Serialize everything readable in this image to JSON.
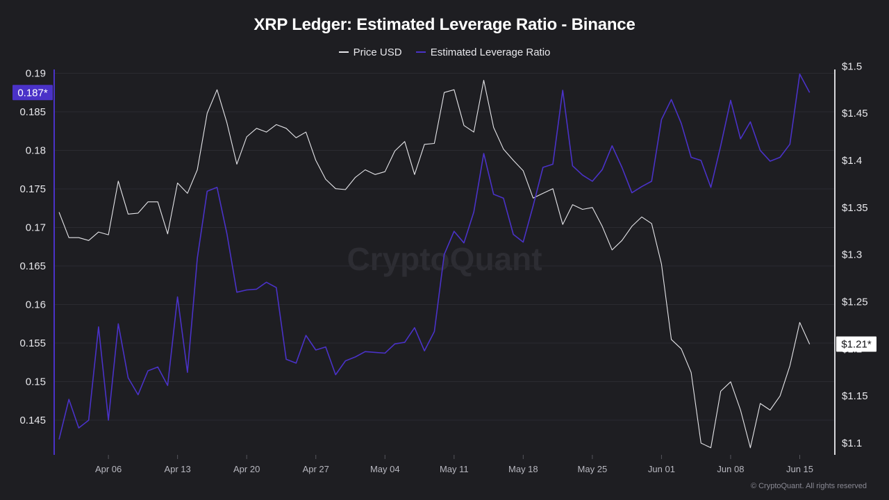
{
  "title": "XRP Ledger: Estimated Leverage Ratio - Binance",
  "watermark": "CryptoQuant",
  "footer": "© CryptoQuant. All rights reserved",
  "legend": [
    {
      "name": "Price USD",
      "color": "#e6e6ea"
    },
    {
      "name": "Estimated Leverage Ratio",
      "color": "#4a32c8"
    }
  ],
  "chart_data": {
    "type": "line",
    "x_start": "Apr 01",
    "x_step_days": 1,
    "x_ticks": [
      "Apr 06",
      "Apr 13",
      "Apr 20",
      "Apr 27",
      "May 04",
      "May 11",
      "May 18",
      "May 25",
      "Jun 01",
      "Jun 08",
      "Jun 15"
    ],
    "grid": true,
    "legend_position": "top-center",
    "axes": {
      "left": {
        "series": "Estimated Leverage Ratio",
        "range": [
          0.1405,
          0.1905
        ],
        "ticks": [
          "0.19",
          "0.185",
          "0.18",
          "0.175",
          "0.17",
          "0.165",
          "0.16",
          "0.155",
          "0.15",
          "0.145"
        ],
        "tick_values": [
          0.19,
          0.185,
          0.18,
          0.175,
          0.17,
          0.165,
          0.16,
          0.155,
          0.15,
          0.145
        ],
        "last_value_label": "0.187*"
      },
      "right": {
        "series": "Price USD",
        "range": [
          1.0875,
          1.4965
        ],
        "ticks": [
          "$1.5",
          "$1.45",
          "$1.4",
          "$1.35",
          "$1.3",
          "$1.25",
          "$1.2",
          "$1.15",
          "$1.1"
        ],
        "tick_values": [
          1.5,
          1.45,
          1.4,
          1.35,
          1.3,
          1.25,
          1.2,
          1.15,
          1.1
        ],
        "last_value_label": "$1.21*"
      }
    },
    "series": [
      {
        "name": "Price USD",
        "axis": "right",
        "color": "#e6e6ea",
        "values": [
          1.345,
          1.318,
          1.318,
          1.315,
          1.324,
          1.321,
          1.378,
          1.343,
          1.344,
          1.356,
          1.356,
          1.322,
          1.376,
          1.365,
          1.39,
          1.45,
          1.475,
          1.44,
          1.396,
          1.425,
          1.434,
          1.43,
          1.438,
          1.434,
          1.424,
          1.43,
          1.4,
          1.38,
          1.37,
          1.369,
          1.382,
          1.39,
          1.385,
          1.388,
          1.41,
          1.42,
          1.385,
          1.417,
          1.418,
          1.472,
          1.475,
          1.437,
          1.43,
          1.485,
          1.435,
          1.412,
          1.4,
          1.389,
          1.36,
          1.365,
          1.37,
          1.332,
          1.353,
          1.348,
          1.35,
          1.33,
          1.305,
          1.315,
          1.33,
          1.34,
          1.333,
          1.29,
          1.21,
          1.2,
          1.175,
          1.1,
          1.095,
          1.155,
          1.165,
          1.135,
          1.095,
          1.142,
          1.135,
          1.15,
          1.182,
          1.228,
          1.205
        ]
      },
      {
        "name": "Estimated Leverage Ratio",
        "axis": "left",
        "color": "#4a32c8",
        "values": [
          0.1425,
          0.1477,
          0.144,
          0.145,
          0.1571,
          0.145,
          0.1575,
          0.1505,
          0.1483,
          0.1514,
          0.1519,
          0.1495,
          0.161,
          0.1512,
          0.166,
          0.1747,
          0.1752,
          0.1692,
          0.1616,
          0.1619,
          0.162,
          0.1629,
          0.1622,
          0.1529,
          0.1524,
          0.156,
          0.1541,
          0.1545,
          0.1509,
          0.1527,
          0.1532,
          0.1539,
          0.1538,
          0.1537,
          0.1549,
          0.1551,
          0.157,
          0.154,
          0.1565,
          0.1665,
          0.1695,
          0.168,
          0.172,
          0.1796,
          0.1743,
          0.1738,
          0.1691,
          0.1681,
          0.1728,
          0.1778,
          0.1782,
          0.1878,
          0.178,
          0.1768,
          0.176,
          0.1775,
          0.1806,
          0.1778,
          0.1745,
          0.1753,
          0.176,
          0.184,
          0.1866,
          0.1835,
          0.1791,
          0.1787,
          0.1752,
          0.1806,
          0.1865,
          0.1815,
          0.1837,
          0.18,
          0.1786,
          0.1791,
          0.1808,
          0.1899,
          0.1875
        ]
      }
    ]
  }
}
